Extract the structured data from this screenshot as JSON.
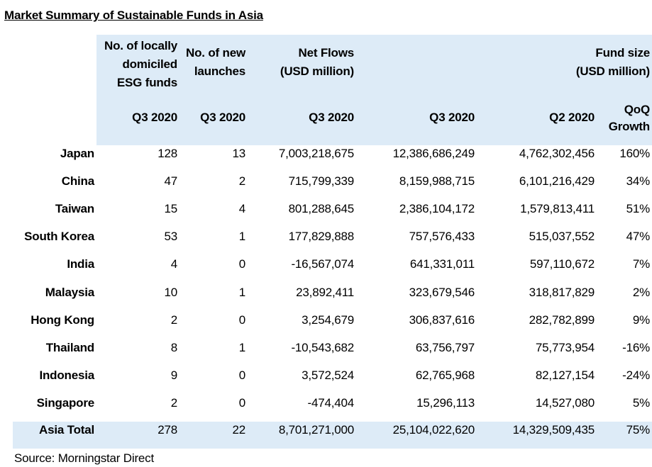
{
  "title": "Market Summary of Sustainable Funds in Asia",
  "header": {
    "col1_title": [
      "No. of locally",
      "domiciled",
      "ESG funds"
    ],
    "col2_title": [
      "No. of new",
      "launches"
    ],
    "col3_title": [
      "Net Flows",
      "(USD million)"
    ],
    "col45_title": [
      "Fund size",
      "(USD million)"
    ],
    "col1_period": "Q3 2020",
    "col2_period": "Q3 2020",
    "col3_period": "Q3 2020",
    "col4_period": "Q3 2020",
    "col5_period": "Q2 2020",
    "col6_label": [
      "QoQ",
      "Growth"
    ]
  },
  "rows": [
    {
      "country": "Japan",
      "funds": "128",
      "launches": "13",
      "net_flows": "7,003,218,675",
      "size_q3": "12,386,686,249",
      "size_q2": "4,762,302,456",
      "growth": "160%"
    },
    {
      "country": "China",
      "funds": "47",
      "launches": "2",
      "net_flows": "715,799,339",
      "size_q3": "8,159,988,715",
      "size_q2": "6,101,216,429",
      "growth": "34%"
    },
    {
      "country": "Taiwan",
      "funds": "15",
      "launches": "4",
      "net_flows": "801,288,645",
      "size_q3": "2,386,104,172",
      "size_q2": "1,579,813,411",
      "growth": "51%"
    },
    {
      "country": "South Korea",
      "funds": "53",
      "launches": "1",
      "net_flows": "177,829,888",
      "size_q3": "757,576,433",
      "size_q2": "515,037,552",
      "growth": "47%"
    },
    {
      "country": "India",
      "funds": "4",
      "launches": "0",
      "net_flows": "-16,567,074",
      "size_q3": "641,331,011",
      "size_q2": "597,110,672",
      "growth": "7%"
    },
    {
      "country": "Malaysia",
      "funds": "10",
      "launches": "1",
      "net_flows": "23,892,411",
      "size_q3": "323,679,546",
      "size_q2": "318,817,829",
      "growth": "2%"
    },
    {
      "country": "Hong Kong",
      "funds": "2",
      "launches": "0",
      "net_flows": "3,254,679",
      "size_q3": "306,837,616",
      "size_q2": "282,782,899",
      "growth": "9%"
    },
    {
      "country": "Thailand",
      "funds": "8",
      "launches": "1",
      "net_flows": "-10,543,682",
      "size_q3": "63,756,797",
      "size_q2": "75,773,954",
      "growth": "-16%"
    },
    {
      "country": "Indonesia",
      "funds": "9",
      "launches": "0",
      "net_flows": "3,572,524",
      "size_q3": "62,765,968",
      "size_q2": "82,127,154",
      "growth": "-24%"
    },
    {
      "country": "Singapore",
      "funds": "2",
      "launches": "0",
      "net_flows": "-474,404",
      "size_q3": "15,296,113",
      "size_q2": "14,527,080",
      "growth": "5%"
    }
  ],
  "total": {
    "country": "Asia Total",
    "funds": "278",
    "launches": "22",
    "net_flows": "8,701,271,000",
    "size_q3": "25,104,022,620",
    "size_q2": "14,329,509,435",
    "growth": "75%"
  },
  "source": "Source: Morningstar Direct",
  "colors": {
    "header_bg": "#ddebf7"
  }
}
